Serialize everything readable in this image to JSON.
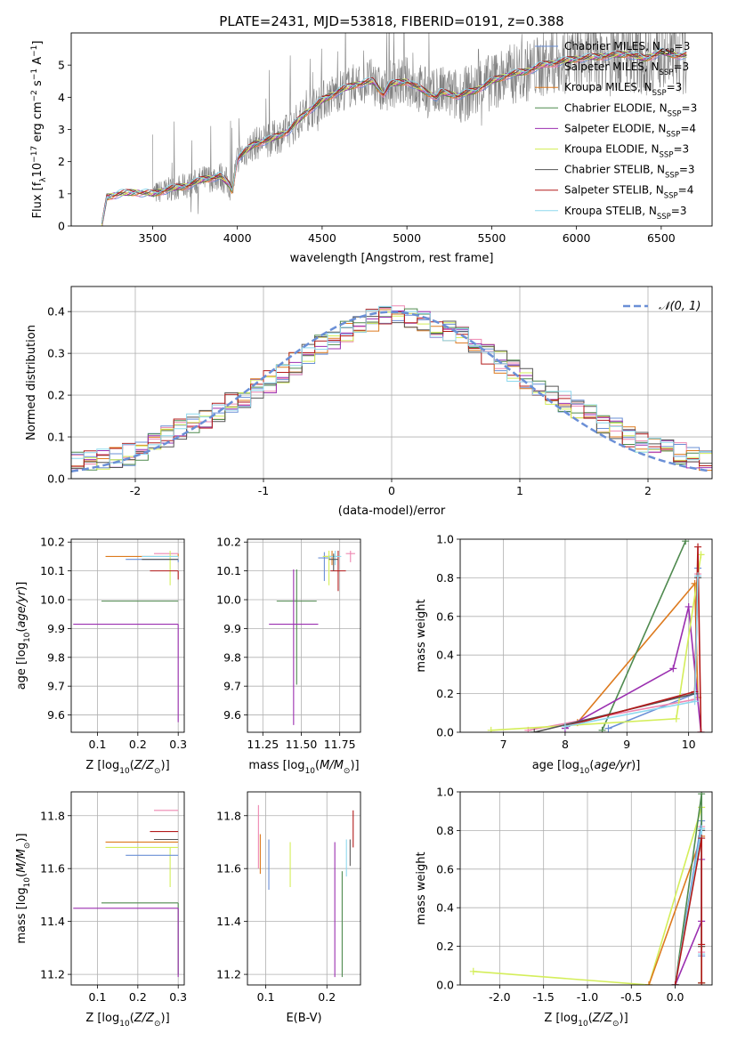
{
  "figure_title": "PLATE=2431, MJD=53818, FIBERID=0191, z=0.388",
  "palette": {
    "Chabrier MILES": "#6a8fd6",
    "Salpeter MILES": "#ee86b0",
    "Kroupa MILES": "#dd7a1e",
    "Chabrier ELODIE": "#4f8a4f",
    "Salpeter ELODIE": "#9b2fb0",
    "Kroupa ELODIE": "#d4ee5a",
    "Chabrier STELIB": "#555555",
    "Salpeter STELIB": "#b31b1b",
    "Kroupa STELIB": "#8ed8ee",
    "data": "#808080",
    "gaussian": "#6a8fd6"
  },
  "chart_data": [
    {
      "id": "spectrum",
      "type": "line",
      "title": "PLATE=2431, MJD=53818, FIBERID=0191, z=0.388",
      "xlabel": "wavelength [Angstrom, rest frame]",
      "ylabel": "Flux [f_λ10^-17 erg cm^-2 s^-1 A^-1]",
      "xlim": [
        3020,
        6800
      ],
      "ylim": [
        0,
        6
      ],
      "xticks": [
        3500,
        4000,
        4500,
        5000,
        5500,
        6000,
        6500
      ],
      "yticks": [
        0,
        1,
        2,
        3,
        4,
        5
      ],
      "grid": false,
      "legend_position": "top-right",
      "legend": [
        {
          "label": "Chabrier MILES, N",
          "sub": "SSP",
          "tail": "=3"
        },
        {
          "label": "Salpeter MILES, N",
          "sub": "SSP",
          "tail": "=3"
        },
        {
          "label": "Kroupa MILES, N",
          "sub": "SSP",
          "tail": "=3"
        },
        {
          "label": "Chabrier ELODIE, N",
          "sub": "SSP",
          "tail": "=3"
        },
        {
          "label": "Salpeter ELODIE, N",
          "sub": "SSP",
          "tail": "=4"
        },
        {
          "label": "Kroupa ELODIE, N",
          "sub": "SSP",
          "tail": "=3"
        },
        {
          "label": "Chabrier STELIB, N",
          "sub": "SSP",
          "tail": "=3"
        },
        {
          "label": "Salpeter STELIB, N",
          "sub": "SSP",
          "tail": "=4"
        },
        {
          "label": "Kroupa STELIB, N",
          "sub": "SSP",
          "tail": "=3"
        }
      ],
      "model_continuum": {
        "x": [
          3200,
          3230,
          3300,
          3400,
          3500,
          3600,
          3700,
          3800,
          3900,
          3950,
          3970,
          4000,
          4100,
          4200,
          4300,
          4400,
          4500,
          4600,
          4700,
          4800,
          4861,
          4900,
          5000,
          5100,
          5175,
          5200,
          5300,
          5400,
          5500,
          5600,
          5700,
          5800,
          5900,
          6000,
          6100,
          6200,
          6300,
          6400,
          6500,
          6600
        ],
        "y": [
          0.0,
          0.9,
          1.0,
          1.05,
          1.0,
          1.15,
          1.25,
          1.45,
          1.55,
          1.3,
          1.1,
          2.1,
          2.55,
          2.7,
          2.95,
          3.5,
          3.9,
          4.2,
          4.4,
          4.5,
          4.1,
          4.4,
          4.5,
          4.2,
          4.0,
          4.15,
          4.05,
          4.2,
          4.5,
          4.7,
          4.8,
          5.0,
          5.1,
          5.2,
          5.25,
          5.3,
          5.35,
          5.2,
          5.4,
          5.3
        ]
      },
      "data_noise_range": [
        3500,
        6650
      ]
    },
    {
      "id": "residuals",
      "type": "line",
      "xlabel": "(data-model)/error",
      "ylabel": "Normed distribution",
      "xlim": [
        -2.5,
        2.5
      ],
      "ylim": [
        0,
        0.46
      ],
      "xticks": [
        -2,
        -1,
        0,
        1,
        2
      ],
      "yticks": [
        0.0,
        0.1,
        0.2,
        0.3,
        0.4
      ],
      "grid": true,
      "legend_position": "top-right",
      "legend": [
        {
          "label": "𝒩(0, 1)"
        }
      ],
      "gaussian": {
        "mean": 0,
        "sigma": 1
      },
      "bin_width": 0.1,
      "histogram_envelope": {
        "x": [
          -2.5,
          -2.0,
          -1.5,
          -1.0,
          -0.5,
          0.0,
          0.5,
          1.0,
          1.5,
          2.0,
          2.5
        ],
        "y": [
          0.04,
          0.06,
          0.14,
          0.22,
          0.33,
          0.4,
          0.35,
          0.25,
          0.16,
          0.08,
          0.04
        ]
      }
    },
    {
      "id": "age_vs_Z",
      "type": "scatter",
      "xlabel": "Z [log10(Z/Z☉)]",
      "ylabel": "age [log10(age/yr)]",
      "xlim": [
        0.035,
        0.315
      ],
      "ylim": [
        9.54,
        10.21
      ],
      "xticks": [
        0.1,
        0.2,
        0.3
      ],
      "yticks": [
        9.6,
        9.7,
        9.8,
        9.9,
        10.0,
        10.1,
        10.2
      ],
      "grid": true,
      "points": [
        {
          "model": "Kroupa MILES",
          "x": 0.3,
          "y": 10.15,
          "xerr": [
            0.18,
            0.0
          ],
          "yerr": [
            0.0,
            0.01
          ]
        },
        {
          "model": "Chabrier MILES",
          "x": 0.3,
          "y": 10.14,
          "xerr": [
            0.13,
            0.0
          ],
          "yerr": [
            0.01,
            0.0
          ]
        },
        {
          "model": "Salpeter MILES",
          "x": 0.3,
          "y": 10.16,
          "xerr": [
            0.06,
            0.0
          ],
          "yerr": [
            0.0,
            0.0
          ]
        },
        {
          "model": "Chabrier ELODIE",
          "x": 0.3,
          "y": 9.995,
          "xerr": [
            0.19,
            0.0
          ],
          "yerr": [
            0.0,
            0.0
          ]
        },
        {
          "model": "Salpeter ELODIE",
          "x": 0.3,
          "y": 9.915,
          "xerr": [
            0.26,
            0.0
          ],
          "yerr": [
            0.34,
            0.0
          ]
        },
        {
          "model": "Kroupa ELODIE",
          "x": 0.28,
          "y": 10.15,
          "xerr": [
            0.0,
            0.02
          ],
          "yerr": [
            0.1,
            0.02
          ]
        },
        {
          "model": "Salpeter STELIB",
          "x": 0.3,
          "y": 10.1,
          "xerr": [
            0.07,
            0.0
          ],
          "yerr": [
            0.03,
            0.0
          ]
        },
        {
          "model": "Kroupa STELIB",
          "x": 0.3,
          "y": 10.15,
          "xerr": [
            0.09,
            0.0
          ],
          "yerr": [
            0.0,
            0.0
          ]
        },
        {
          "model": "Chabrier STELIB",
          "x": 0.3,
          "y": 10.14,
          "xerr": [
            0.09,
            0.0
          ],
          "yerr": [
            0.0,
            0.0
          ]
        }
      ]
    },
    {
      "id": "age_vs_mass",
      "type": "scatter",
      "xlabel": "mass [log10(M/M☉)]",
      "ylabel": "",
      "xlim": [
        11.15,
        11.885
      ],
      "ylim": [
        9.54,
        10.21
      ],
      "xticks": [
        11.25,
        11.5,
        11.75
      ],
      "yticks": [
        9.6,
        9.7,
        9.8,
        9.9,
        10.0,
        10.1,
        10.2
      ],
      "grid": true,
      "points": [
        {
          "model": "Chabrier ELODIE",
          "x": 11.47,
          "y": 9.995,
          "xerr": [
            0.13,
            0.13
          ],
          "yerr": [
            0.29,
            0.11
          ]
        },
        {
          "model": "Salpeter ELODIE",
          "x": 11.45,
          "y": 9.915,
          "xerr": [
            0.16,
            0.16
          ],
          "yerr": [
            0.35,
            0.19
          ]
        },
        {
          "model": "Chabrier MILES",
          "x": 11.65,
          "y": 10.145,
          "xerr": [
            0.04,
            0.04
          ],
          "yerr": [
            0.08,
            0.02
          ]
        },
        {
          "model": "Kroupa MILES",
          "x": 11.7,
          "y": 10.15,
          "xerr": [
            0.05,
            0.05
          ],
          "yerr": [
            0.03,
            0.02
          ]
        },
        {
          "model": "Salpeter MILES",
          "x": 11.82,
          "y": 10.16,
          "xerr": [
            0.03,
            0.03
          ],
          "yerr": [
            0.03,
            0.01
          ]
        },
        {
          "model": "Kroupa ELODIE",
          "x": 11.68,
          "y": 10.15,
          "xerr": [
            0.04,
            0.04
          ],
          "yerr": [
            0.1,
            0.02
          ]
        },
        {
          "model": "Salpeter STELIB",
          "x": 11.74,
          "y": 10.1,
          "xerr": [
            0.05,
            0.05
          ],
          "yerr": [
            0.07,
            0.07
          ]
        },
        {
          "model": "Kroupa STELIB",
          "x": 11.72,
          "y": 10.15,
          "xerr": [
            0.04,
            0.04
          ],
          "yerr": [
            0.03,
            0.02
          ]
        },
        {
          "model": "Chabrier STELIB",
          "x": 11.71,
          "y": 10.14,
          "xerr": [
            0.03,
            0.03
          ],
          "yerr": [
            0.04,
            0.02
          ]
        }
      ]
    },
    {
      "id": "mass_weight_vs_age",
      "type": "line",
      "xlabel": "age [log10(age/yr)]",
      "ylabel": "mass weight",
      "xlim": [
        6.3,
        10.38
      ],
      "ylim": [
        0,
        1.0
      ],
      "xticks": [
        7,
        8,
        9,
        10
      ],
      "yticks": [
        0.0,
        0.2,
        0.4,
        0.6,
        0.8,
        1.0
      ],
      "grid": true,
      "series": [
        {
          "model": "Chabrier MILES",
          "x": [
            8.7,
            10.1,
            10.15
          ],
          "y": [
            0.02,
            0.2,
            0.85
          ]
        },
        {
          "model": "Salpeter MILES",
          "x": [
            7.4,
            10.1,
            10.15
          ],
          "y": [
            0.01,
            0.17,
            0.82
          ]
        },
        {
          "model": "Kroupa MILES",
          "x": [
            8.2,
            10.1,
            10.15
          ],
          "y": [
            0.05,
            0.77,
            0.18
          ]
        },
        {
          "model": "Chabrier ELODIE",
          "x": [
            8.6,
            9.95
          ],
          "y": [
            0.01,
            0.99
          ]
        },
        {
          "model": "Salpeter ELODIE",
          "x": [
            8.0,
            9.75,
            10.0,
            10.2
          ],
          "y": [
            0.02,
            0.33,
            0.65,
            0.0
          ]
        },
        {
          "model": "Kroupa ELODIE",
          "x": [
            6.8,
            9.8,
            10.2
          ],
          "y": [
            0.01,
            0.07,
            0.92
          ]
        },
        {
          "model": "Chabrier STELIB",
          "x": [
            7.5,
            10.1,
            10.15
          ],
          "y": [
            0.0,
            0.2,
            0.8
          ]
        },
        {
          "model": "Salpeter STELIB",
          "x": [
            8.0,
            10.1,
            10.15,
            10.2
          ],
          "y": [
            0.03,
            0.21,
            0.96,
            0.0
          ]
        },
        {
          "model": "Kroupa STELIB",
          "x": [
            8.0,
            10.1,
            10.15
          ],
          "y": [
            0.03,
            0.16,
            0.81
          ]
        }
      ]
    },
    {
      "id": "mass_vs_Z",
      "type": "scatter",
      "xlabel": "Z [log10(Z/Z☉)]",
      "ylabel": "mass [log10(M/M☉)]",
      "xlim": [
        0.035,
        0.315
      ],
      "ylim": [
        11.16,
        11.89
      ],
      "xticks": [
        0.1,
        0.2,
        0.3
      ],
      "yticks": [
        11.2,
        11.4,
        11.6,
        11.8
      ],
      "grid": true,
      "points": [
        {
          "model": "Salpeter MILES",
          "x": 0.3,
          "y": 11.82,
          "xerr": [
            0.06,
            0.0
          ],
          "yerr": [
            0.0,
            0.0
          ]
        },
        {
          "model": "Salpeter STELIB",
          "x": 0.3,
          "y": 11.74,
          "xerr": [
            0.07,
            0.0
          ],
          "yerr": [
            0.0,
            0.0
          ]
        },
        {
          "model": "Chabrier STELIB",
          "x": 0.3,
          "y": 11.71,
          "xerr": [
            0.06,
            0.0
          ],
          "yerr": [
            0.0,
            0.0
          ]
        },
        {
          "model": "Kroupa MILES",
          "x": 0.3,
          "y": 11.7,
          "xerr": [
            0.18,
            0.0
          ],
          "yerr": [
            0.0,
            0.0
          ]
        },
        {
          "model": "Kroupa ELODIE",
          "x": 0.28,
          "y": 11.68,
          "xerr": [
            0.16,
            0.02
          ],
          "yerr": [
            0.15,
            0.0
          ]
        },
        {
          "model": "Chabrier MILES",
          "x": 0.3,
          "y": 11.65,
          "xerr": [
            0.13,
            0.0
          ],
          "yerr": [
            0.0,
            0.0
          ]
        },
        {
          "model": "Chabrier ELODIE",
          "x": 0.3,
          "y": 11.47,
          "xerr": [
            0.19,
            0.0
          ],
          "yerr": [
            0.27,
            0.0
          ]
        },
        {
          "model": "Salpeter ELODIE",
          "x": 0.3,
          "y": 11.45,
          "xerr": [
            0.26,
            0.0
          ],
          "yerr": [
            0.26,
            0.0
          ]
        }
      ]
    },
    {
      "id": "mass_vs_EBV",
      "type": "scatter",
      "xlabel": "E(B-V)",
      "ylabel": "",
      "xlim": [
        0.07,
        0.255
      ],
      "ylim": [
        11.16,
        11.89
      ],
      "xticks": [
        0.1,
        0.2
      ],
      "yticks": [
        11.2,
        11.4,
        11.6,
        11.8
      ],
      "grid": true,
      "points": [
        {
          "model": "Salpeter MILES",
          "x": 0.088,
          "y": 11.72,
          "yerr": [
            0.12,
            0.12
          ]
        },
        {
          "model": "Kroupa MILES",
          "x": 0.091,
          "y": 11.66,
          "yerr": [
            0.08,
            0.07
          ]
        },
        {
          "model": "Chabrier MILES",
          "x": 0.105,
          "y": 11.61,
          "yerr": [
            0.09,
            0.1
          ]
        },
        {
          "model": "Kroupa ELODIE",
          "x": 0.14,
          "y": 11.61,
          "yerr": [
            0.08,
            0.09
          ]
        },
        {
          "model": "Salpeter ELODIE",
          "x": 0.213,
          "y": 11.45,
          "yerr": [
            0.26,
            0.25
          ]
        },
        {
          "model": "Chabrier ELODIE",
          "x": 0.225,
          "y": 11.39,
          "yerr": [
            0.2,
            0.2
          ]
        },
        {
          "model": "Kroupa STELIB",
          "x": 0.232,
          "y": 11.63,
          "yerr": [
            0.06,
            0.08
          ]
        },
        {
          "model": "Chabrier STELIB",
          "x": 0.238,
          "y": 11.66,
          "yerr": [
            0.05,
            0.05
          ]
        },
        {
          "model": "Salpeter STELIB",
          "x": 0.243,
          "y": 11.74,
          "yerr": [
            0.06,
            0.08
          ]
        }
      ]
    },
    {
      "id": "mass_weight_vs_Z",
      "type": "line",
      "xlabel": "Z [log10(Z/Z☉)]",
      "ylabel": "mass weight",
      "xlim": [
        -2.45,
        0.42
      ],
      "ylim": [
        0,
        1.0
      ],
      "xticks": [
        -2.0,
        -1.5,
        -1.0,
        -0.5,
        0.0
      ],
      "yticks": [
        0.0,
        0.2,
        0.4,
        0.6,
        0.8,
        1.0
      ],
      "grid": true,
      "series": [
        {
          "model": "Kroupa ELODIE",
          "x": [
            -2.3,
            -0.3,
            0.3,
            0.3
          ],
          "y": [
            0.07,
            0.0,
            0.92,
            0.01
          ]
        },
        {
          "model": "Kroupa MILES",
          "x": [
            -0.3,
            0.3,
            0.3
          ],
          "y": [
            0.0,
            0.77,
            0.2
          ]
        },
        {
          "model": "Salpeter MILES",
          "x": [
            0.0,
            0.3,
            0.3
          ],
          "y": [
            0.0,
            0.82,
            0.17
          ]
        },
        {
          "model": "Chabrier MILES",
          "x": [
            0.0,
            0.3,
            0.3
          ],
          "y": [
            0.0,
            0.85,
            0.15
          ]
        },
        {
          "model": "Chabrier ELODIE",
          "x": [
            0.0,
            0.3,
            0.3
          ],
          "y": [
            0.0,
            0.99,
            0.01
          ]
        },
        {
          "model": "Salpeter ELODIE",
          "x": [
            0.0,
            0.3,
            0.3
          ],
          "y": [
            0.0,
            0.33,
            0.65
          ]
        },
        {
          "model": "Chabrier STELIB",
          "x": [
            0.0,
            0.3,
            0.3
          ],
          "y": [
            0.0,
            0.8,
            0.2
          ]
        },
        {
          "model": "Kroupa STELIB",
          "x": [
            0.0,
            0.3,
            0.3
          ],
          "y": [
            0.0,
            0.81,
            0.16
          ]
        },
        {
          "model": "Salpeter STELIB",
          "x": [
            0.0,
            0.3,
            0.3,
            0.3
          ],
          "y": [
            0.0,
            0.76,
            0.21,
            0.01
          ]
        }
      ]
    }
  ]
}
